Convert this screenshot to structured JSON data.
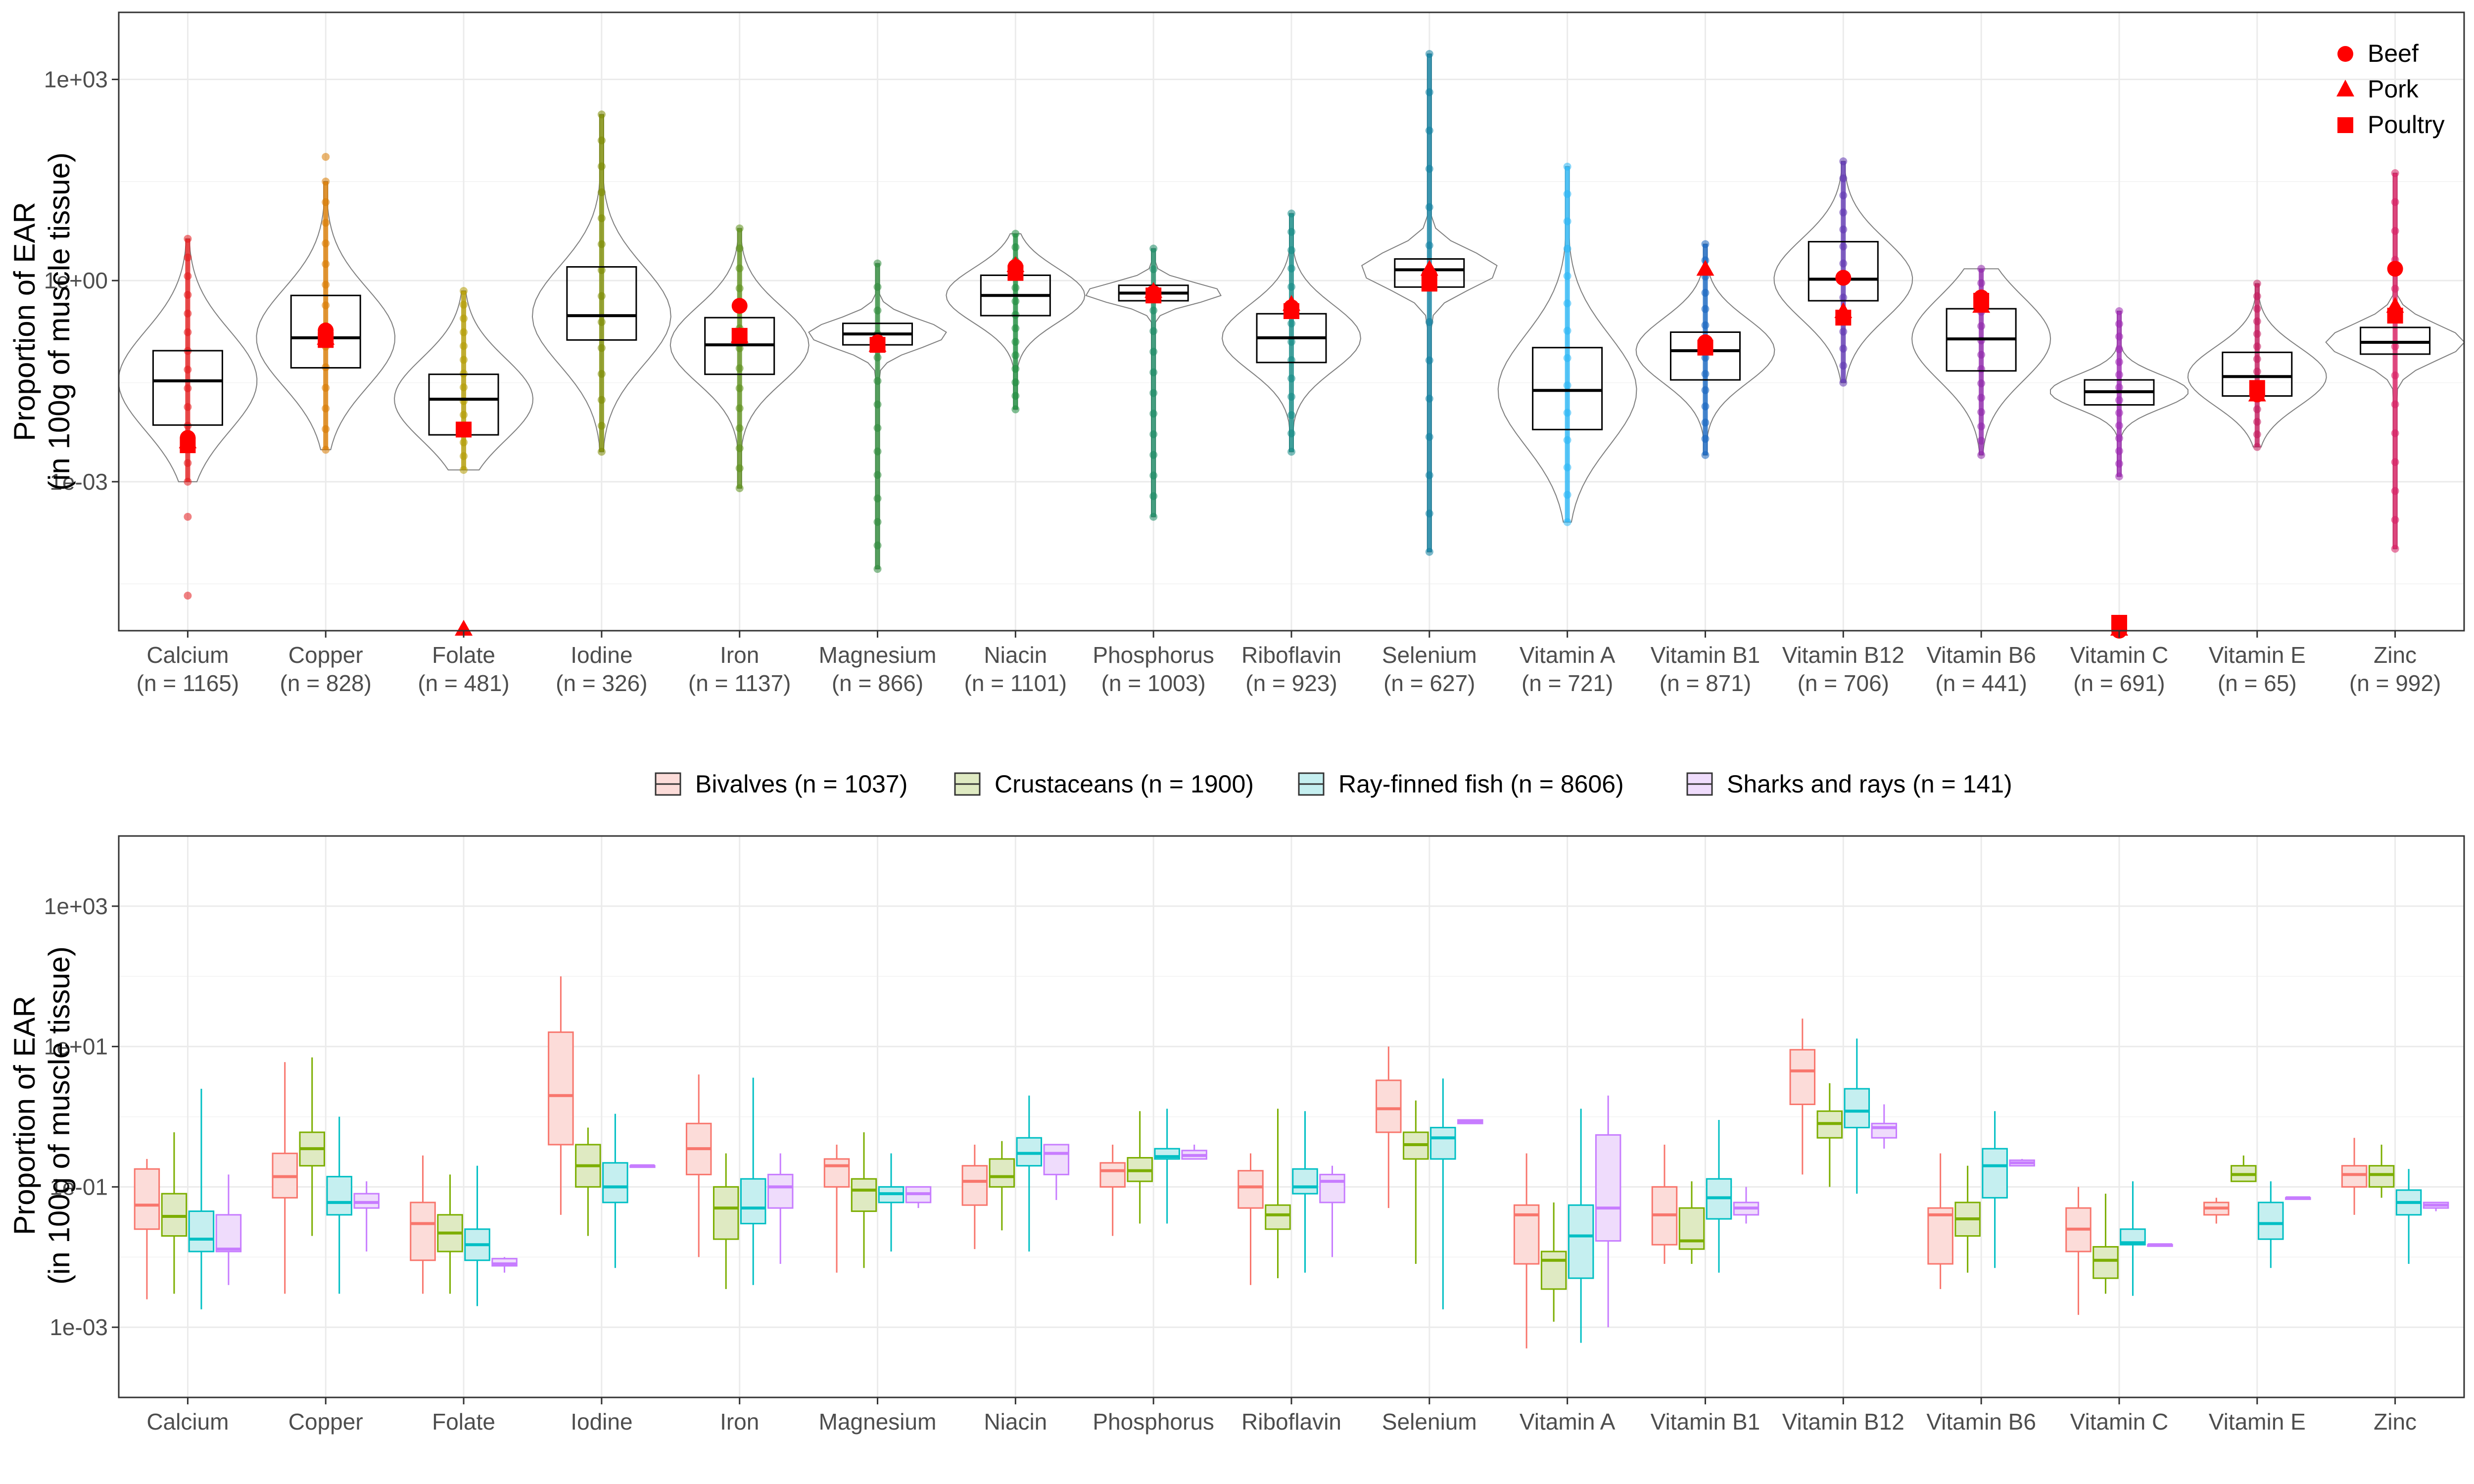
{
  "chart_data": [
    {
      "type": "boxplot",
      "subtype": "violin + boxplot with jittered points, log10 y axis",
      "panel": "top",
      "ylabel_lines": [
        "Proportion of EAR",
        "(in 100g of muscle tissue)"
      ],
      "y_scale": "log10",
      "ylim": [
        6e-06,
        10000
      ],
      "y_ticks": [
        {
          "value": 0.001,
          "label": "1e-03"
        },
        {
          "value": 1,
          "label": "1e+00"
        },
        {
          "value": 1000,
          "label": "1e+03"
        }
      ],
      "grid": true,
      "legend": {
        "position": "top-right",
        "entries": [
          {
            "label": "Beef",
            "shape": "circle",
            "color": "#ff0000"
          },
          {
            "label": "Pork",
            "shape": "triangle",
            "color": "#ff0000"
          },
          {
            "label": "Poultry",
            "shape": "square",
            "color": "#ff0000"
          }
        ]
      },
      "categories": [
        {
          "name": "Calcium",
          "n_label": "(n = 1165)",
          "color": "#e31a1c",
          "q1": 0.007,
          "median": 0.032,
          "q3": 0.09,
          "whisker_low": 0.001,
          "whisker_high": 4.2,
          "outliers": [
            0.0003,
            2e-05
          ],
          "beef": 0.0045,
          "pork": 0.004,
          "poultry": 0.0035
        },
        {
          "name": "Copper",
          "n_label": "(n = 828)",
          "color": "#d97a00",
          "q1": 0.05,
          "median": 0.14,
          "q3": 0.6,
          "whisker_low": 0.003,
          "whisker_high": 30,
          "outliers": [
            70
          ],
          "beef": 0.18,
          "pork": 0.14,
          "poultry": 0.13
        },
        {
          "name": "Folate",
          "n_label": "(n = 481)",
          "color": "#b39b00",
          "q1": 0.005,
          "median": 0.017,
          "q3": 0.04,
          "whisker_low": 0.0015,
          "whisker_high": 0.7,
          "outliers": [],
          "beef": 0.006,
          "pork": 4e-06,
          "poultry": 0.006
        },
        {
          "name": "Iodine",
          "n_label": "(n = 326)",
          "color": "#7b8b00",
          "q1": 0.13,
          "median": 0.3,
          "q3": 1.6,
          "whisker_low": 0.0028,
          "whisker_high": 300,
          "outliers": [],
          "beef": null,
          "pork": null,
          "poultry": null
        },
        {
          "name": "Iron",
          "n_label": "(n = 1137)",
          "color": "#5d8f1a",
          "q1": 0.04,
          "median": 0.11,
          "q3": 0.28,
          "whisker_low": 0.0008,
          "whisker_high": 6,
          "outliers": [],
          "beef": 0.42,
          "pork": 0.15,
          "poultry": 0.15
        },
        {
          "name": "Magnesium",
          "n_label": "(n = 866)",
          "color": "#2e8b3a",
          "q1": 0.11,
          "median": 0.16,
          "q3": 0.23,
          "whisker_low": 5e-05,
          "whisker_high": 1.8,
          "outliers": [],
          "beef": 0.12,
          "pork": 0.11,
          "poultry": 0.11
        },
        {
          "name": "Niacin",
          "n_label": "(n = 1101)",
          "color": "#1b8c3c",
          "q1": 0.3,
          "median": 0.6,
          "q3": 1.2,
          "whisker_low": 0.012,
          "whisker_high": 5,
          "outliers": [],
          "beef": 1.6,
          "pork": 1.7,
          "poultry": 1.3
        },
        {
          "name": "Phosphorus",
          "n_label": "(n = 1003)",
          "color": "#1a8a64",
          "q1": 0.5,
          "median": 0.65,
          "q3": 0.85,
          "whisker_low": 0.0003,
          "whisker_high": 3,
          "outliers": [],
          "beef": 0.65,
          "pork": 0.7,
          "poultry": 0.6
        },
        {
          "name": "Riboflavin",
          "n_label": "(n = 923)",
          "color": "#138a85",
          "q1": 0.06,
          "median": 0.14,
          "q3": 0.32,
          "whisker_low": 0.0028,
          "whisker_high": 10,
          "outliers": [],
          "beef": 0.4,
          "pork": 0.45,
          "poultry": 0.35
        },
        {
          "name": "Selenium",
          "n_label": "(n = 627)",
          "color": "#0e7fa0",
          "q1": 0.8,
          "median": 1.45,
          "q3": 2.1,
          "whisker_low": 9e-05,
          "whisker_high": 2400,
          "outliers": [],
          "beef": 1.2,
          "pork": 1.5,
          "poultry": 0.9
        },
        {
          "name": "Vitamin A",
          "n_label": "(n = 721)",
          "color": "#29b6f6",
          "q1": 0.006,
          "median": 0.023,
          "q3": 0.1,
          "whisker_low": 0.00025,
          "whisker_high": 50,
          "outliers": [],
          "beef": null,
          "pork": null,
          "poultry": null
        },
        {
          "name": "Vitamin B1",
          "n_label": "(n = 871)",
          "color": "#1565c0",
          "q1": 0.033,
          "median": 0.09,
          "q3": 0.17,
          "whisker_low": 0.0025,
          "whisker_high": 3.5,
          "outliers": [],
          "beef": 0.12,
          "pork": 1.5,
          "poultry": 0.1
        },
        {
          "name": "Vitamin B12",
          "n_label": "(n = 706)",
          "color": "#5e35b1",
          "q1": 0.5,
          "median": 1.05,
          "q3": 3.8,
          "whisker_low": 0.03,
          "whisker_high": 60,
          "outliers": [],
          "beef": 1.1,
          "pork": 0.35,
          "poultry": 0.28
        },
        {
          "name": "Vitamin B6",
          "n_label": "(n = 441)",
          "color": "#8e24aa",
          "q1": 0.045,
          "median": 0.135,
          "q3": 0.38,
          "whisker_low": 0.0025,
          "whisker_high": 1.5,
          "outliers": [],
          "beef": 0.56,
          "pork": 0.42,
          "poultry": 0.5
        },
        {
          "name": "Vitamin C",
          "n_label": "(n = 691)",
          "color": "#9c27b0",
          "q1": 0.014,
          "median": 0.022,
          "q3": 0.033,
          "whisker_low": 0.0012,
          "whisker_high": 0.35,
          "outliers": [],
          "beef": 4e-06,
          "pork": 4e-06,
          "poultry": 4e-06
        },
        {
          "name": "Vitamin E",
          "n_label": "(n = 65)",
          "color": "#c2185b",
          "q1": 0.019,
          "median": 0.037,
          "q3": 0.085,
          "whisker_low": 0.0033,
          "whisker_high": 0.9,
          "outliers": [],
          "beef": 0.02,
          "pork": 0.02,
          "poultry": 0.025
        },
        {
          "name": "Zinc",
          "n_label": "(n = 992)",
          "color": "#d81b60",
          "q1": 0.08,
          "median": 0.12,
          "q3": 0.2,
          "whisker_low": 0.0001,
          "whisker_high": 40,
          "outliers": [],
          "beef": 1.5,
          "pork": 0.42,
          "poultry": 0.3
        }
      ]
    },
    {
      "type": "boxplot",
      "subtype": "grouped boxplots by taxon, log10 y axis",
      "panel": "bottom",
      "ylabel_lines": [
        "Proportion of EAR",
        "(in 100g of muscle tissue)"
      ],
      "y_scale": "log10",
      "ylim": [
        0.0001,
        10000
      ],
      "y_ticks": [
        {
          "value": 0.001,
          "label": "1e-03"
        },
        {
          "value": 0.1,
          "label": "1e-01"
        },
        {
          "value": 10,
          "label": "1e+01"
        },
        {
          "value": 1000,
          "label": "1e+03"
        }
      ],
      "grid": true,
      "legend": {
        "position": "top"
      },
      "series": [
        {
          "name": "Bivalves (n = 1037)",
          "color": "#f8766d",
          "fill": "#fcdcd9"
        },
        {
          "name": "Crustaceans (n = 1900)",
          "color": "#7cae00",
          "fill": "#dfeac2"
        },
        {
          "name": "Ray-finned fish (n = 8606)",
          "color": "#00bfc4",
          "fill": "#c5eff0"
        },
        {
          "name": "Sharks and rays (n = 141)",
          "color": "#c77cff",
          "fill": "#efdcfc"
        }
      ],
      "categories": [
        "Calcium",
        "Copper",
        "Folate",
        "Iodine",
        "Iron",
        "Magnesium",
        "Niacin",
        "Phosphorus",
        "Riboflavin",
        "Selenium",
        "Vitamin A",
        "Vitamin B1",
        "Vitamin B12",
        "Vitamin B6",
        "Vitamin C",
        "Vitamin E",
        "Zinc"
      ],
      "boxes": [
        [
          [
            0.0025,
            0.025,
            0.055,
            0.18,
            0.25
          ],
          [
            0.003,
            0.02,
            0.038,
            0.08,
            0.6
          ],
          [
            0.0018,
            0.012,
            0.018,
            0.045,
            2.5
          ],
          [
            0.004,
            0.012,
            0.013,
            0.04,
            0.15
          ]
        ],
        [
          [
            0.003,
            0.07,
            0.14,
            0.3,
            6
          ],
          [
            0.02,
            0.2,
            0.35,
            0.6,
            7
          ],
          [
            0.003,
            0.04,
            0.06,
            0.14,
            1
          ],
          [
            0.012,
            0.05,
            0.06,
            0.08,
            0.12
          ]
        ],
        [
          [
            0.003,
            0.009,
            0.03,
            0.06,
            0.28
          ],
          [
            0.003,
            0.012,
            0.022,
            0.04,
            0.15
          ],
          [
            0.002,
            0.009,
            0.015,
            0.025,
            0.2
          ],
          [
            0.006,
            0.0075,
            0.008,
            0.0095,
            0.01
          ]
        ],
        [
          [
            0.04,
            0.4,
            2.0,
            16,
            100
          ],
          [
            0.02,
            0.1,
            0.2,
            0.4,
            0.7
          ],
          [
            0.007,
            0.06,
            0.1,
            0.22,
            1.1
          ],
          [
            0.2,
            0.2,
            0.2,
            0.2,
            0.2
          ]
        ],
        [
          [
            0.01,
            0.15,
            0.35,
            0.8,
            4
          ],
          [
            0.0035,
            0.018,
            0.05,
            0.1,
            0.3
          ],
          [
            0.004,
            0.03,
            0.05,
            0.13,
            3.6
          ],
          [
            0.008,
            0.05,
            0.1,
            0.15,
            0.3
          ]
        ],
        [
          [
            0.006,
            0.1,
            0.2,
            0.25,
            0.4
          ],
          [
            0.007,
            0.045,
            0.09,
            0.13,
            0.6
          ],
          [
            0.012,
            0.06,
            0.08,
            0.1,
            0.3
          ],
          [
            0.05,
            0.06,
            0.08,
            0.1,
            0.1
          ]
        ],
        [
          [
            0.013,
            0.055,
            0.12,
            0.2,
            0.4
          ],
          [
            0.024,
            0.1,
            0.14,
            0.25,
            0.45
          ],
          [
            0.012,
            0.2,
            0.3,
            0.5,
            2
          ],
          [
            0.065,
            0.15,
            0.3,
            0.4,
            0.4
          ]
        ],
        [
          [
            0.02,
            0.1,
            0.17,
            0.22,
            0.4
          ],
          [
            0.03,
            0.12,
            0.17,
            0.26,
            1.2
          ],
          [
            0.03,
            0.25,
            0.27,
            0.35,
            1.3
          ],
          [
            0.25,
            0.25,
            0.28,
            0.33,
            0.4
          ]
        ],
        [
          [
            0.004,
            0.05,
            0.1,
            0.17,
            0.3
          ],
          [
            0.005,
            0.025,
            0.04,
            0.055,
            1.3
          ],
          [
            0.006,
            0.08,
            0.1,
            0.18,
            1.2
          ],
          [
            0.01,
            0.06,
            0.12,
            0.15,
            0.2
          ]
        ],
        [
          [
            0.05,
            0.6,
            1.3,
            3.3,
            10
          ],
          [
            0.008,
            0.25,
            0.4,
            0.6,
            1.7
          ],
          [
            0.0018,
            0.25,
            0.5,
            0.7,
            3.5
          ],
          [
            0.8,
            0.8,
            0.85,
            0.9,
            0.9
          ]
        ],
        [
          [
            0.0005,
            0.008,
            0.04,
            0.055,
            0.3
          ],
          [
            0.0012,
            0.0035,
            0.009,
            0.012,
            0.06
          ],
          [
            0.0006,
            0.005,
            0.02,
            0.055,
            1.3
          ],
          [
            0.001,
            0.017,
            0.05,
            0.55,
            2
          ]
        ],
        [
          [
            0.008,
            0.015,
            0.04,
            0.1,
            0.4
          ],
          [
            0.008,
            0.013,
            0.017,
            0.05,
            0.12
          ],
          [
            0.006,
            0.035,
            0.07,
            0.13,
            0.9
          ],
          [
            0.03,
            0.04,
            0.05,
            0.06,
            0.1
          ]
        ],
        [
          [
            0.15,
            1.5,
            4.5,
            9,
            25
          ],
          [
            0.1,
            0.5,
            0.8,
            1.2,
            3
          ],
          [
            0.08,
            0.7,
            1.2,
            2.5,
            13
          ],
          [
            0.35,
            0.5,
            0.7,
            0.8,
            1.5
          ]
        ],
        [
          [
            0.0035,
            0.008,
            0.04,
            0.05,
            0.3
          ],
          [
            0.006,
            0.02,
            0.035,
            0.06,
            0.2
          ],
          [
            0.007,
            0.07,
            0.2,
            0.35,
            1.2
          ],
          [
            0.2,
            0.2,
            0.22,
            0.24,
            0.25
          ]
        ],
        [
          [
            0.0015,
            0.012,
            0.025,
            0.05,
            0.1
          ],
          [
            0.003,
            0.005,
            0.009,
            0.014,
            0.08
          ],
          [
            0.0028,
            0.015,
            0.016,
            0.025,
            0.12
          ],
          [
            0.015,
            0.015,
            0.015,
            0.015,
            0.015
          ]
        ],
        [
          [
            0.03,
            0.04,
            0.05,
            0.06,
            0.07
          ],
          [
            0.12,
            0.12,
            0.15,
            0.2,
            0.28
          ],
          [
            0.007,
            0.018,
            0.03,
            0.06,
            0.12
          ],
          [
            0.07,
            0.07,
            0.07,
            0.07,
            0.07
          ]
        ],
        [
          [
            0.04,
            0.1,
            0.15,
            0.2,
            0.5
          ],
          [
            0.07,
            0.1,
            0.15,
            0.2,
            0.4
          ],
          [
            0.008,
            0.04,
            0.06,
            0.09,
            0.18
          ],
          [
            0.045,
            0.05,
            0.055,
            0.06,
            0.06
          ]
        ]
      ]
    }
  ]
}
